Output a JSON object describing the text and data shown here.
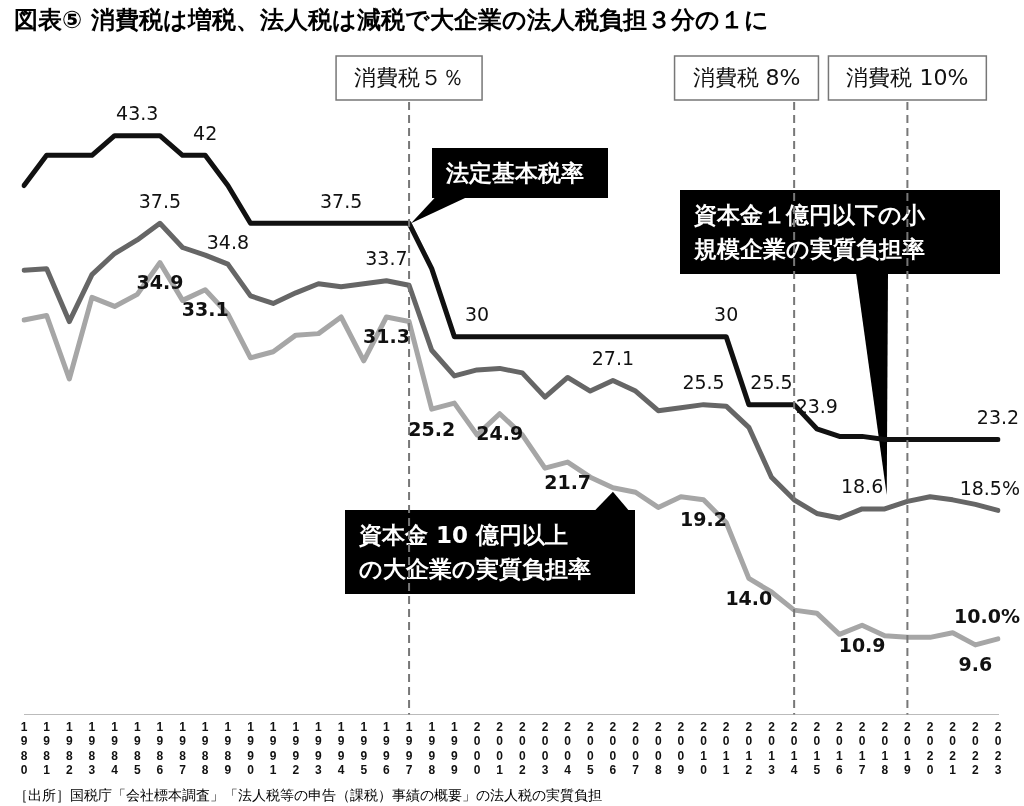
{
  "chart_data": {
    "type": "line",
    "title": "図表⑤ 消費税は増税、法人税は減税で大企業の法人税負担３分の１に",
    "categories": [
      "1980",
      "1981",
      "1982",
      "1983",
      "1984",
      "1985",
      "1986",
      "1987",
      "1988",
      "1989",
      "1990",
      "1991",
      "1992",
      "1993",
      "1994",
      "1995",
      "1996",
      "1997",
      "1998",
      "1999",
      "2000",
      "2001",
      "2002",
      "2003",
      "2004",
      "2005",
      "2006",
      "2007",
      "2008",
      "2009",
      "2010",
      "2011",
      "2012",
      "2013",
      "2014",
      "2015",
      "2016",
      "2017",
      "2018",
      "2019",
      "2020",
      "2021",
      "2022",
      "2023"
    ],
    "series": [
      {
        "name": "法定基本税率",
        "color": "#111111",
        "values": [
          40,
          42,
          42,
          42,
          43.3,
          43.3,
          43.3,
          42,
          42,
          40,
          37.5,
          37.5,
          37.5,
          37.5,
          37.5,
          37.5,
          37.5,
          37.5,
          34.5,
          30,
          30,
          30,
          30,
          30,
          30,
          30,
          30,
          30,
          30,
          30,
          30,
          30,
          25.5,
          25.5,
          25.5,
          23.9,
          23.4,
          23.4,
          23.2,
          23.2,
          23.2,
          23.2,
          23.2,
          23.2
        ],
        "value_labels": [
          null,
          null,
          null,
          null,
          null,
          "43.3",
          null,
          null,
          "42",
          null,
          null,
          null,
          null,
          null,
          "37.5",
          null,
          null,
          null,
          null,
          null,
          "30",
          null,
          null,
          null,
          null,
          null,
          null,
          null,
          null,
          null,
          null,
          "30",
          null,
          "25.5",
          null,
          "23.9",
          null,
          null,
          null,
          null,
          null,
          null,
          null,
          "23.2"
        ]
      },
      {
        "name": "資本金１億円以下の小規模企業の実質負担率",
        "color": "#666666",
        "values": [
          34.4,
          34.5,
          31.0,
          34.1,
          35.5,
          36.4,
          37.5,
          35.9,
          35.4,
          34.8,
          32.7,
          32.2,
          32.9,
          33.5,
          33.3,
          33.5,
          33.7,
          33.4,
          29.1,
          27.4,
          27.8,
          27.9,
          27.6,
          26.0,
          27.3,
          26.4,
          27.1,
          26.4,
          25.1,
          25.3,
          25.5,
          25.4,
          24.0,
          20.7,
          19.2,
          18.3,
          18.0,
          18.6,
          18.6,
          19.1,
          19.4,
          19.2,
          18.9,
          18.5
        ],
        "value_labels": [
          null,
          null,
          null,
          null,
          null,
          null,
          "37.5",
          null,
          null,
          "34.8",
          null,
          null,
          null,
          null,
          null,
          null,
          "33.7",
          null,
          null,
          null,
          null,
          null,
          null,
          null,
          null,
          null,
          "27.1",
          null,
          null,
          null,
          "25.5",
          null,
          null,
          null,
          null,
          null,
          null,
          "18.6",
          null,
          null,
          null,
          null,
          null,
          "18.5%"
        ]
      },
      {
        "name": "資本金 10 億円以上の大企業の実質負担率",
        "color": "#a6a6a6",
        "values": [
          31.1,
          31.4,
          27.2,
          32.6,
          32.0,
          32.8,
          34.9,
          32.4,
          33.1,
          31.5,
          28.6,
          29.0,
          30.1,
          30.2,
          31.3,
          28.4,
          31.3,
          31.0,
          25.2,
          25.6,
          23.5,
          24.9,
          23.5,
          21.3,
          21.7,
          20.7,
          20.0,
          19.7,
          18.7,
          19.4,
          19.2,
          17.7,
          14.0,
          13.1,
          11.9,
          11.7,
          10.3,
          10.9,
          10.2,
          10.1,
          10.1,
          10.4,
          9.6,
          10.0
        ],
        "value_labels": [
          null,
          null,
          null,
          null,
          null,
          null,
          "34.9",
          null,
          "33.1",
          null,
          null,
          null,
          null,
          null,
          null,
          null,
          "31.3",
          null,
          "25.2",
          null,
          null,
          "24.9",
          null,
          null,
          "21.7",
          null,
          null,
          null,
          null,
          null,
          "19.2",
          null,
          "14.0",
          null,
          null,
          null,
          null,
          "10.9",
          null,
          null,
          null,
          null,
          "9.6",
          "10.0%"
        ]
      }
    ],
    "ref_lines": [
      {
        "axis": "x",
        "value": "1997",
        "label": "消費税５％",
        "color": "#777777",
        "line_style": "dashed"
      },
      {
        "axis": "x",
        "value": "2014",
        "label": "消費税 8%",
        "color": "#777777",
        "line_style": "dashed"
      },
      {
        "axis": "x",
        "value": "2019",
        "label": "消費税 10%",
        "color": "#777777",
        "line_style": "dashed"
      }
    ],
    "annotations": [
      "［出所］国税庁「会社標本調査」「法人税等の申告（課税）事績の概要」の法人税の実質負担"
    ],
    "marker": "none",
    "line_style": "solid"
  }
}
